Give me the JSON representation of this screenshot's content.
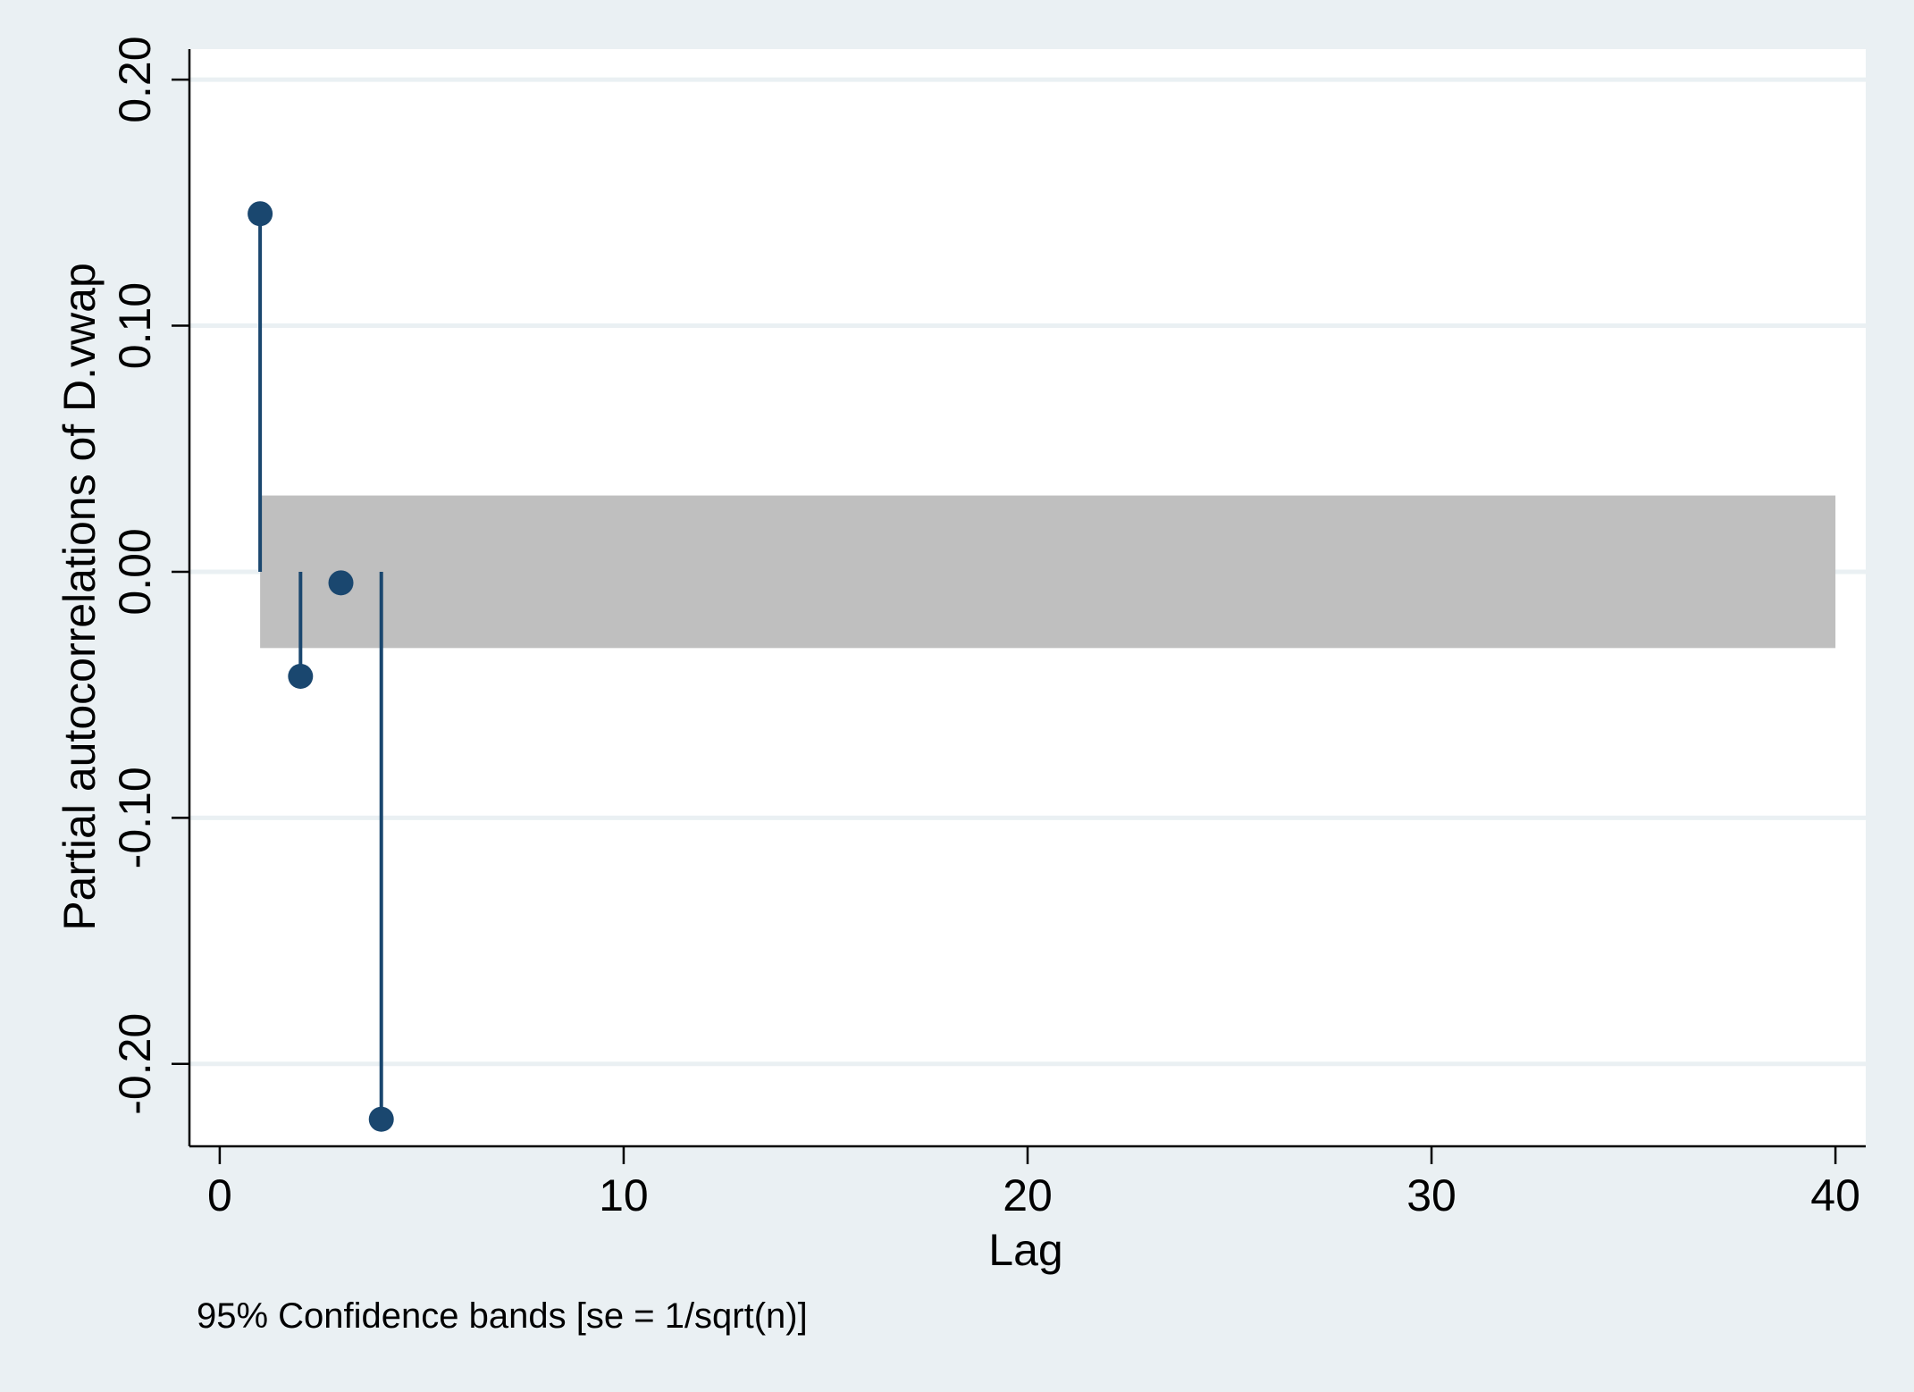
{
  "chart_data": {
    "type": "scatter",
    "style": "stem (needle) plot with confidence band",
    "xlabel": "Lag",
    "ylabel": "Partial autocorrelations of D.vwap",
    "note": "95% Confidence bands [se = 1/sqrt(n)]",
    "xlim": [
      -0.75,
      40.75
    ],
    "ylim": [
      -0.2335,
      0.2124
    ],
    "x_ticks": [
      0,
      10,
      20,
      30,
      40
    ],
    "x_tick_labels": [
      "0",
      "10",
      "20",
      "30",
      "40"
    ],
    "y_ticks": [
      -0.2,
      -0.1,
      0.0,
      0.1,
      0.2
    ],
    "y_tick_labels": [
      "-0.20",
      "-0.10",
      "0.00",
      "0.10",
      "0.20"
    ],
    "grid": true,
    "series": [
      {
        "lags": [
          1,
          2,
          3,
          4
        ],
        "values": [
          0.1455,
          -0.0425,
          -0.0045,
          -0.2225
        ]
      }
    ],
    "confidence_band": {
      "x_range": [
        1,
        40
      ],
      "lower": -0.031,
      "upper": 0.031
    },
    "colors": {
      "background": "#eaf0f3",
      "plot_region": "#ffffff",
      "grid": "#eaf0f3",
      "band": "#bfbfbf",
      "marker": "#1a476f",
      "axis": "#000000"
    }
  }
}
